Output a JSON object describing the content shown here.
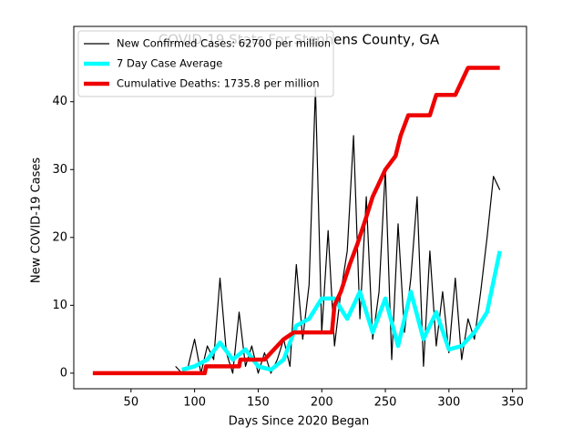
{
  "chart_data": {
    "type": "line",
    "title": "COVID-19 Stats For Stephens County, GA",
    "xlabel": "Days Since 2020 Began",
    "ylabel": "New COVID-19 Cases",
    "xlim": [
      5,
      361
    ],
    "xticks": [
      50,
      100,
      150,
      200,
      250,
      300,
      350
    ],
    "ylim": [
      -2.3,
      51.1
    ],
    "yticks": [
      0,
      10,
      20,
      30,
      40
    ],
    "legend": "upper left",
    "series": [
      {
        "name": "New Confirmed Cases: 62700 per million",
        "color": "#000000",
        "width": 1.2,
        "x": [
          85,
          90,
          95,
          100,
          105,
          110,
          115,
          120,
          125,
          130,
          135,
          140,
          145,
          150,
          155,
          160,
          165,
          170,
          175,
          180,
          185,
          190,
          195,
          200,
          205,
          210,
          215,
          220,
          225,
          230,
          235,
          240,
          245,
          250,
          255,
          260,
          265,
          270,
          275,
          280,
          285,
          290,
          295,
          300,
          305,
          310,
          315,
          320,
          325,
          330,
          335,
          340
        ],
        "values": [
          1,
          0,
          1,
          5,
          0,
          4,
          2,
          14,
          3,
          0,
          9,
          1,
          4,
          0,
          3,
          0,
          2,
          5,
          1,
          16,
          5,
          13,
          42,
          6,
          21,
          4,
          12,
          18,
          35,
          8,
          26,
          5,
          12,
          30,
          2,
          22,
          6,
          14,
          26,
          1,
          18,
          4,
          12,
          3,
          14,
          2,
          8,
          5,
          12,
          20,
          29,
          27
        ]
      },
      {
        "name": "7 Day Case Average",
        "color": "#00ffff",
        "width": 4.5,
        "x": [
          90,
          100,
          110,
          120,
          130,
          140,
          150,
          160,
          170,
          180,
          190,
          200,
          210,
          220,
          230,
          240,
          250,
          260,
          270,
          280,
          290,
          300,
          310,
          320,
          330,
          340
        ],
        "values": [
          0.5,
          1,
          2,
          4.5,
          2,
          3.5,
          1,
          0.5,
          2,
          7,
          8,
          11,
          11,
          8,
          12,
          6,
          11,
          4,
          12,
          5,
          9,
          3.5,
          4,
          6,
          9,
          18
        ]
      },
      {
        "name": "Cumulative Deaths: 1735.8 per million",
        "color": "#ee0000",
        "width": 4.5,
        "x": [
          20,
          108,
          109,
          135,
          136,
          155,
          160,
          165,
          170,
          178,
          208,
          210,
          215,
          222,
          228,
          235,
          240,
          245,
          250,
          258,
          262,
          268,
          285,
          290,
          305,
          310,
          315,
          340
        ],
        "values": [
          0,
          0,
          1,
          1,
          2,
          2,
          3,
          4,
          5,
          6,
          6,
          10,
          12,
          16,
          19,
          23,
          26,
          28,
          30,
          32,
          35,
          38,
          38,
          41,
          41,
          43,
          45,
          45
        ]
      }
    ]
  }
}
